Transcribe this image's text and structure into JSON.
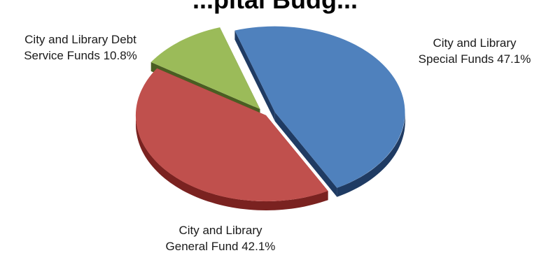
{
  "chart_data": {
    "type": "pie",
    "title": "",
    "title_fragment": "...pital Budg...",
    "slices": [
      {
        "label_lines": [
          "City and Library",
          "Special Funds 47.1%"
        ],
        "value": 47.1,
        "color": "#4f81bd",
        "side_color": "#1f3b63",
        "exploded": true
      },
      {
        "label_lines": [
          "City and Library",
          "General Fund 42.1%"
        ],
        "value": 42.1,
        "color": "#c0504d",
        "side_color": "#7a2220",
        "exploded": false
      },
      {
        "label_lines": [
          "City and Library Debt",
          "Service Funds 10.8%"
        ],
        "value": 10.8,
        "color": "#9bbb59",
        "side_color": "#4a5e22",
        "exploded": true
      }
    ],
    "legend": "none"
  }
}
